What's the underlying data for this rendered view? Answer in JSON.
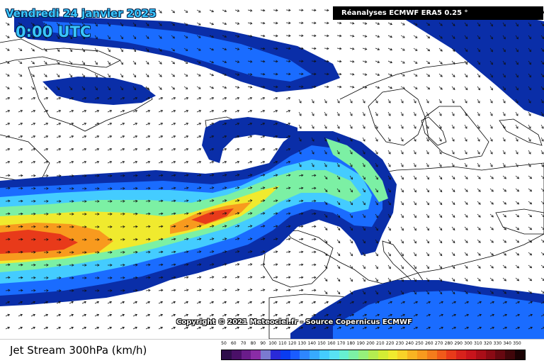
{
  "header": {
    "date": "Vendredi 24 janvier 2025",
    "time": "0:00 UTC",
    "source_badge": "Réanalyses ECMWF ERA5 0.25 °"
  },
  "copyright": "Copyright © 2021 Meteociel.fr - Source Copernicus ECMWF",
  "footer": {
    "title": "Jet Stream 300hPa (km/h)"
  },
  "legend": {
    "values": [
      "50",
      "60",
      "70",
      "80",
      "90",
      "100",
      "110",
      "120",
      "130",
      "140",
      "150",
      "160",
      "170",
      "180",
      "190",
      "200",
      "210",
      "220",
      "230",
      "240",
      "250",
      "260",
      "270",
      "280",
      "290",
      "300",
      "310",
      "320",
      "330",
      "340",
      "350"
    ],
    "colors": [
      "#2e0e4a",
      "#4a1068",
      "#6a1c8a",
      "#8a2ca6",
      "#7a7ad0",
      "#2a2ad8",
      "#0a3cf0",
      "#1a5cff",
      "#2e86ff",
      "#37aaff",
      "#44ccff",
      "#58e2f4",
      "#66f0d0",
      "#7cf0a4",
      "#96f07a",
      "#b4ec50",
      "#d4ec34",
      "#f0ea2e",
      "#f8d228",
      "#f8b422",
      "#f89a1e",
      "#f47c1c",
      "#f05a1a",
      "#e83a1a",
      "#d8221c",
      "#c8141c",
      "#aa0e18",
      "#8a0a14",
      "#660810",
      "#40060a",
      "#1a0204"
    ]
  },
  "map": {
    "ocean_color": "#ffffff",
    "jet_colors": {
      "weak": "#0a2ea8",
      "moderate": "#1a6cff",
      "fast": "#44ccff",
      "faster": "#7cf0a4",
      "strong": "#f0ea2e",
      "very_strong": "#f89a1e",
      "core": "#e83a1a"
    }
  }
}
